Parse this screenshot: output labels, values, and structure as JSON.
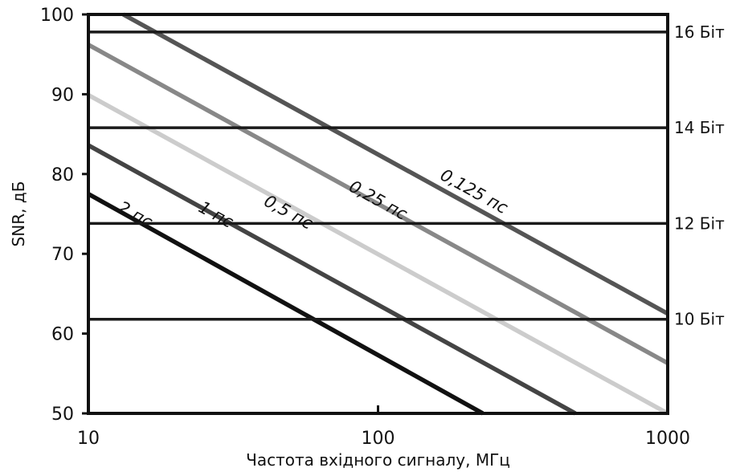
{
  "chart_data": {
    "type": "line",
    "title": "",
    "xlabel": "Частота вхідного сигналу, МГц",
    "ylabel": "SNR, дБ",
    "x_scale": "log",
    "xlim": [
      10,
      1000
    ],
    "ylim": [
      50,
      100
    ],
    "x_ticks": [
      {
        "value": 10,
        "label": "10"
      },
      {
        "value": 100,
        "label": "100"
      },
      {
        "value": 1000,
        "label": "1000"
      }
    ],
    "y_ticks": [
      {
        "value": 50,
        "label": "50"
      },
      {
        "value": 60,
        "label": "60"
      },
      {
        "value": 70,
        "label": "70"
      },
      {
        "value": 80,
        "label": "80"
      },
      {
        "value": 90,
        "label": "90"
      },
      {
        "value": 100,
        "label": "100"
      }
    ],
    "reference_lines": [
      {
        "label": "16 Біт",
        "value": 97.8,
        "color": "#1a1a1a"
      },
      {
        "label": "14 Біт",
        "value": 85.8,
        "color": "#1a1a1a"
      },
      {
        "label": "12 Біт",
        "value": 73.8,
        "color": "#1a1a1a"
      },
      {
        "label": "10 Біт",
        "value": 61.8,
        "color": "#1a1a1a"
      }
    ],
    "series": [
      {
        "name": "2 пс",
        "label": "2 пс",
        "color": "#111111",
        "x": [
          10,
          230
        ],
        "y": [
          77.5,
          50
        ],
        "label_at": {
          "x": 14.2,
          "y": 74.3
        }
      },
      {
        "name": "1 пс",
        "label": "1 пс",
        "color": "#444444",
        "x": [
          10,
          480
        ],
        "y": [
          83.6,
          50
        ],
        "label_at": {
          "x": 27,
          "y": 74.3
        }
      },
      {
        "name": "0,5 пс",
        "label": "0,5 пс",
        "color": "#cccccc",
        "x": [
          10,
          1000
        ],
        "y": [
          89.9,
          50
        ],
        "label_at": {
          "x": 48,
          "y": 74.6
        }
      },
      {
        "name": "0,25 пс",
        "label": "0,25 пс",
        "color": "#888888",
        "x": [
          10,
          1000
        ],
        "y": [
          96.2,
          56.3
        ],
        "label_at": {
          "x": 98,
          "y": 76.1
        }
      },
      {
        "name": "0,125 пс",
        "label": "0,125 пс",
        "color": "#555555",
        "x": [
          13.2,
          1000
        ],
        "y": [
          100,
          62.5
        ],
        "label_at": {
          "x": 210,
          "y": 77.2
        }
      }
    ],
    "grid": false,
    "legend": "none"
  }
}
